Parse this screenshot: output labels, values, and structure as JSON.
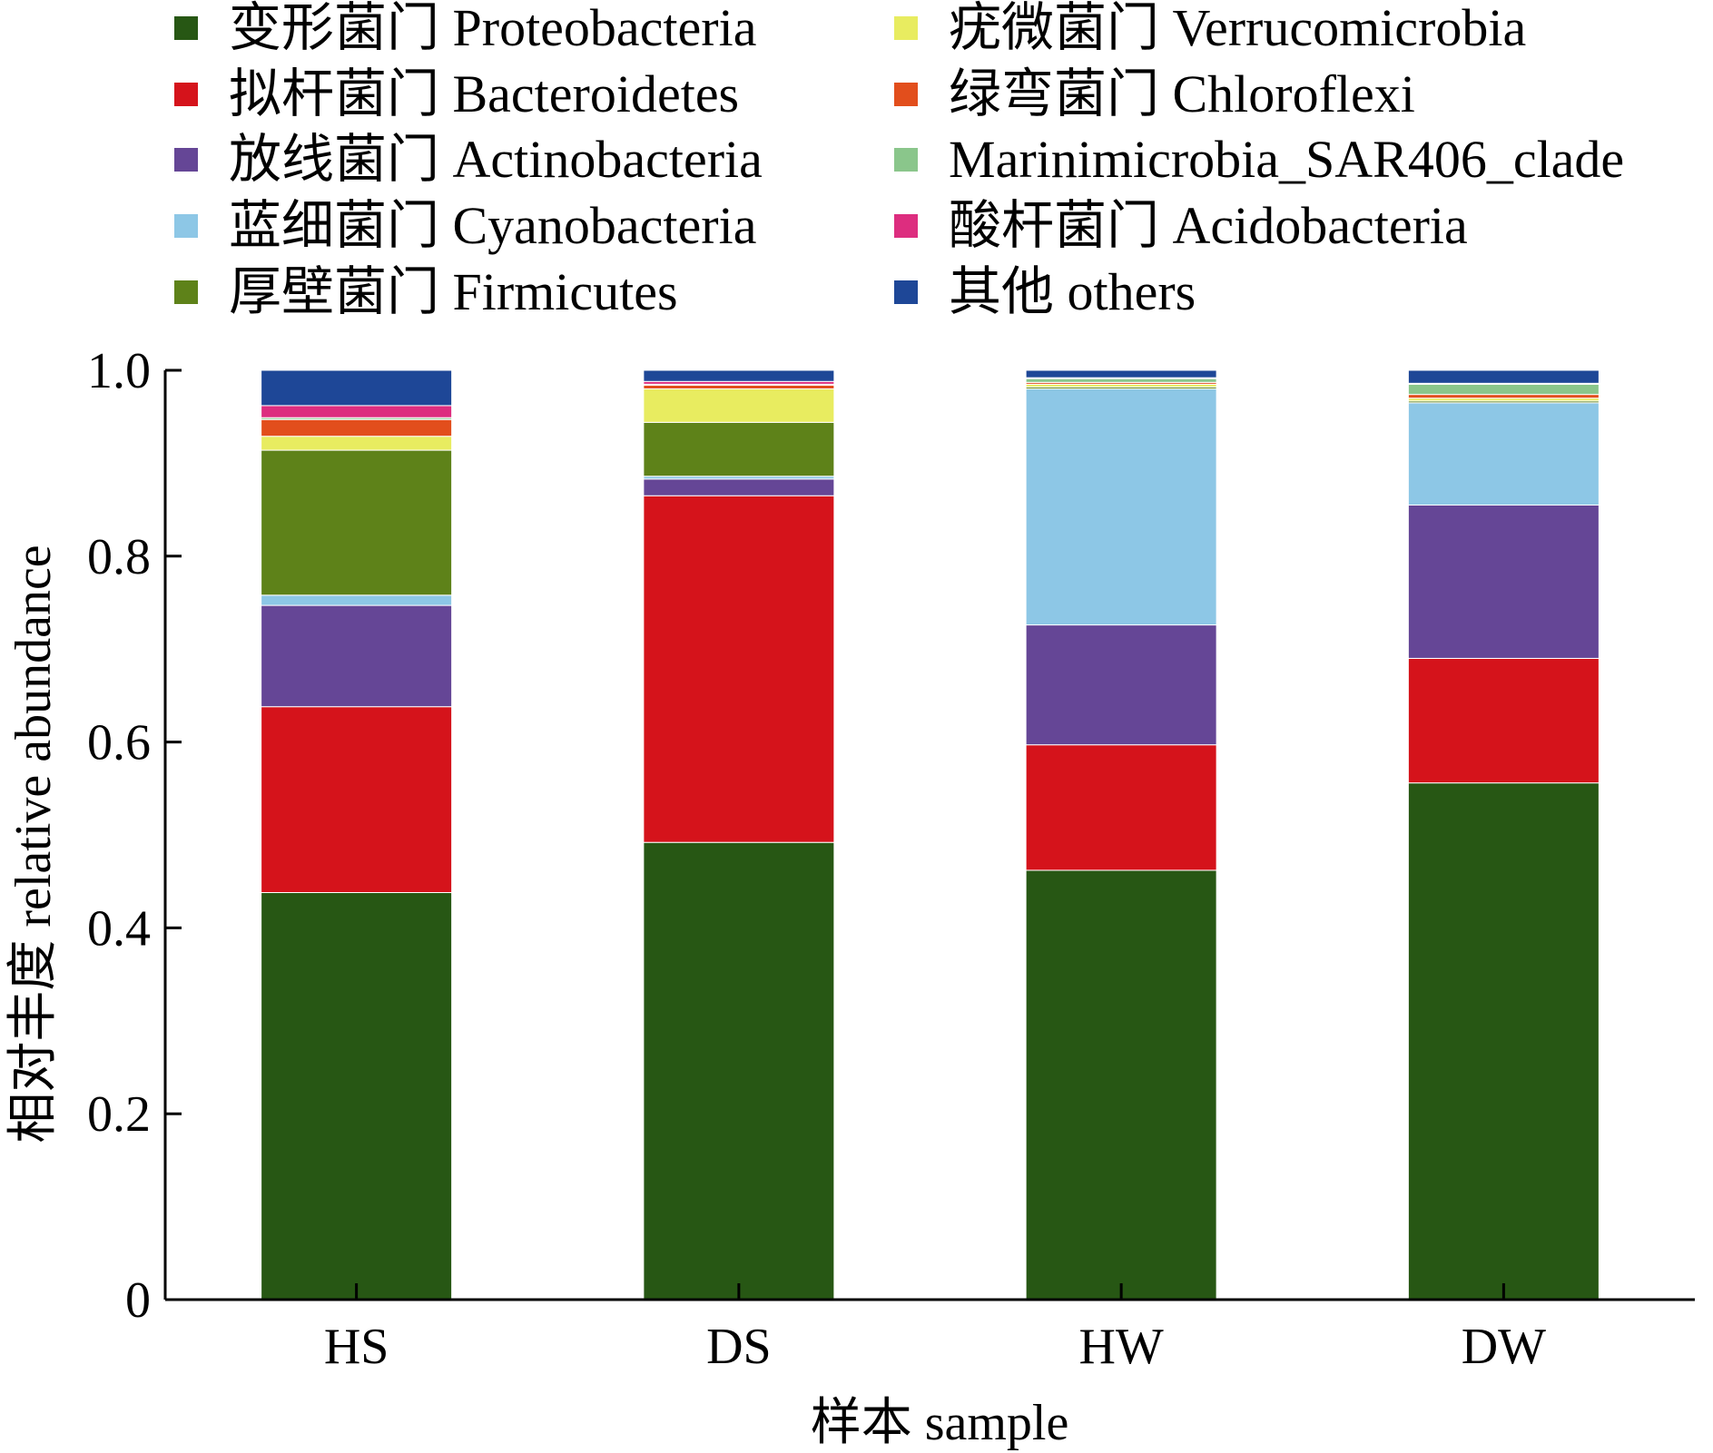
{
  "chart_data": {
    "type": "bar",
    "stacked": true,
    "categories": [
      "HS",
      "DS",
      "HW",
      "DW"
    ],
    "xlabel": "样本 sample",
    "ylabel": "相对丰度 relative abundance",
    "ylim": [
      0,
      1.0
    ],
    "yticks": [
      0,
      0.2,
      0.4,
      0.6,
      0.8,
      1.0
    ],
    "ytick_labels": [
      "0",
      "0.2",
      "0.4",
      "0.6",
      "0.8",
      "1.0"
    ],
    "grid": false,
    "legend_position": "top",
    "series": [
      {
        "name": "变形菌门 Proteobacteria",
        "color": "#275714",
        "values": [
          0.438,
          0.492,
          0.462,
          0.556
        ]
      },
      {
        "name": "拟杆菌门 Bacteroidetes",
        "color": "#d5131b",
        "values": [
          0.2,
          0.373,
          0.135,
          0.134
        ]
      },
      {
        "name": "放线菌门 Actinobacteria",
        "color": "#654696",
        "values": [
          0.109,
          0.018,
          0.129,
          0.165
        ]
      },
      {
        "name": "蓝细菌门 Cyanobacteria",
        "color": "#8dc7e6",
        "values": [
          0.011,
          0.003,
          0.254,
          0.11
        ]
      },
      {
        "name": "厚壁菌门 Firmicutes",
        "color": "#5e8219",
        "values": [
          0.156,
          0.058,
          0.002,
          0.002
        ]
      },
      {
        "name": "疣微菌门 Verrucomicrobia",
        "color": "#e8ec60",
        "values": [
          0.015,
          0.036,
          0.003,
          0.003
        ]
      },
      {
        "name": "绿弯菌门 Chloroflexi",
        "color": "#e24e1c",
        "values": [
          0.018,
          0.004,
          0.002,
          0.004
        ]
      },
      {
        "name": "Marinimicrobia_SAR406_clade",
        "color": "#8ac68b",
        "values": [
          0.002,
          0.001,
          0.004,
          0.011
        ]
      },
      {
        "name": "酸杆菌门 Acidobacteria",
        "color": "#dd2d7f",
        "values": [
          0.013,
          0.003,
          0.001,
          0.001
        ]
      },
      {
        "name": "其他 others",
        "color": "#1e4797",
        "values": [
          0.038,
          0.012,
          0.008,
          0.014
        ]
      }
    ]
  }
}
